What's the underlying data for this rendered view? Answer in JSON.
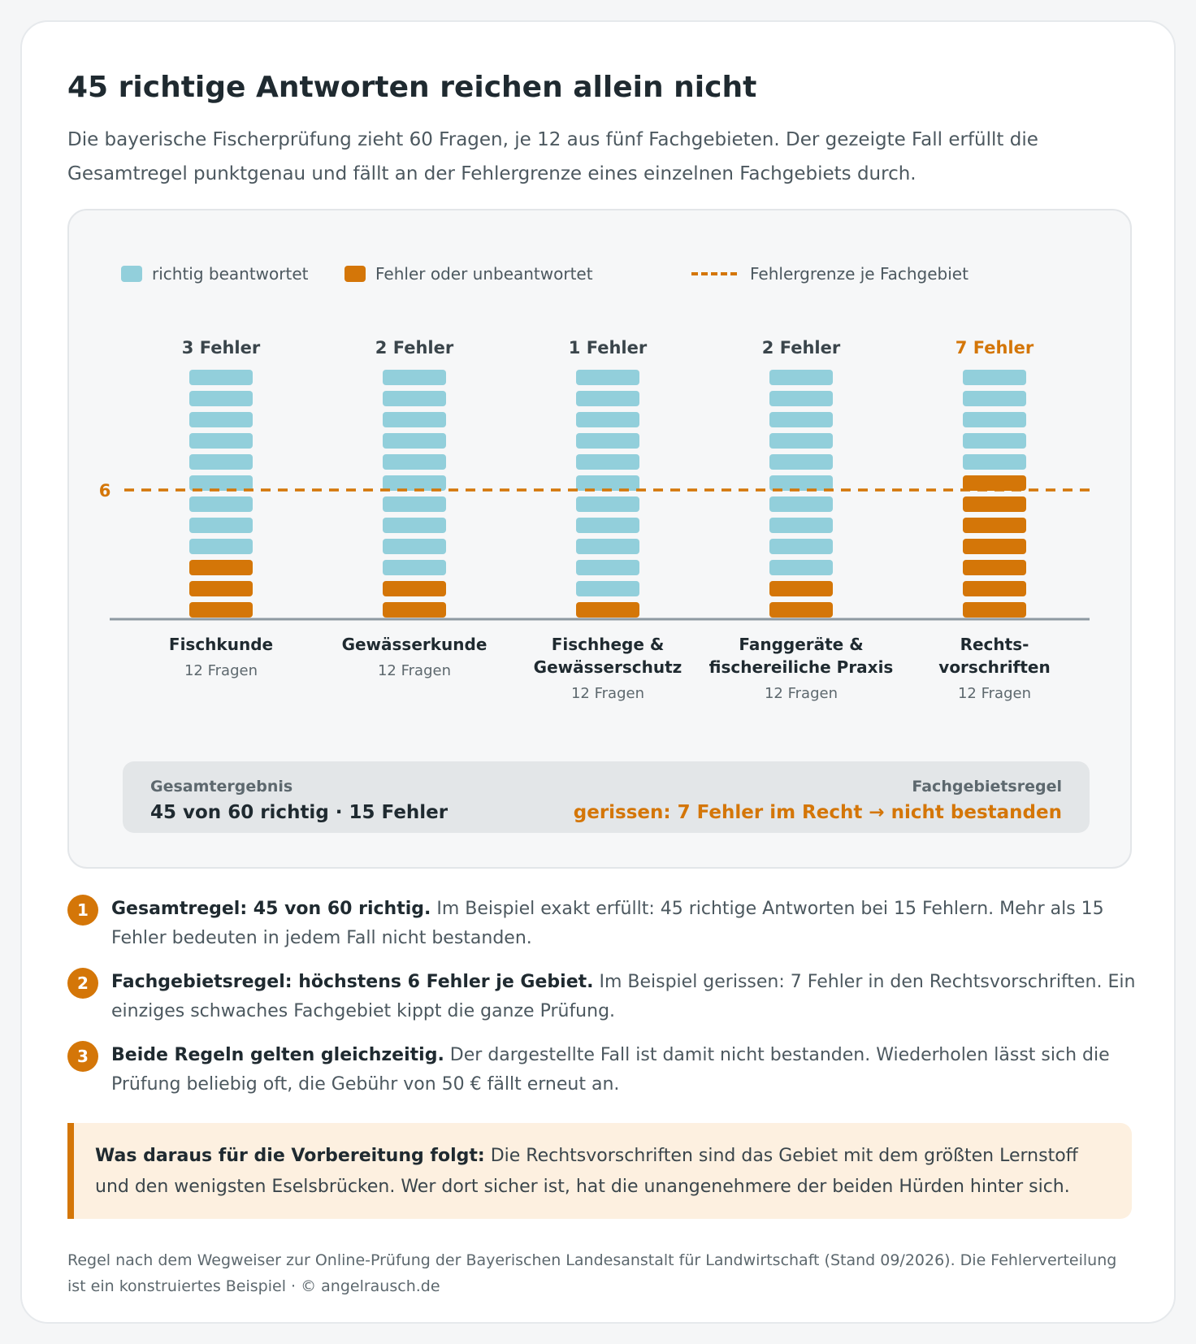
{
  "title": "45 richtige Antworten reichen allein nicht",
  "subtitle": "Die bayerische Fischerprüfung zieht 60 Fragen, je 12 aus fünf Fachgebieten. Der gezeigte Fall erfüllt die Gesamtregel punktgenau und fällt an der Fehlergrenze eines einzelnen Fachgebiets durch.",
  "legend": {
    "correct": "richtig beantwortet",
    "error": "Fehler oder unbeantwortet",
    "limit": "Fehlergrenze je Fachgebiet"
  },
  "colors": {
    "correct": "#92cfdb",
    "error": "#d47608",
    "limit": "#d47608",
    "axis": "#8e9aa2",
    "text": "#1f2a30",
    "muted": "#5d686e"
  },
  "chart_data": {
    "type": "bar",
    "stacked": true,
    "categories": [
      "Fischkunde",
      "Gewässerkunde",
      "Fischhege & Gewässerschutz",
      "Fanggeräte & fischereiliche Praxis",
      "Rechts- vorschriften"
    ],
    "category_lines": [
      [
        "Fischkunde"
      ],
      [
        "Gewässerkunde"
      ],
      [
        "Fischhege &",
        "Gewässerschutz"
      ],
      [
        "Fanggeräte &",
        "fischereiliche Praxis"
      ],
      [
        "Rechts-",
        "vorschriften"
      ]
    ],
    "category_sub": "12 Fragen",
    "questions_per_category": 12,
    "series": [
      {
        "name": "richtig beantwortet",
        "values": [
          9,
          10,
          11,
          10,
          5
        ]
      },
      {
        "name": "Fehler oder unbeantwortet",
        "values": [
          3,
          2,
          1,
          2,
          7
        ]
      }
    ],
    "error_labels": [
      "3 Fehler",
      "2 Fehler",
      "1 Fehler",
      "2 Fehler",
      "7 Fehler"
    ],
    "limit_line": {
      "value": 6,
      "label": "6"
    }
  },
  "result": {
    "left_label": "Gesamtergebnis",
    "left_value": "45 von 60 richtig · 15 Fehler",
    "right_label": "Fachgebietsregel",
    "right_value": "gerissen: 7 Fehler im Recht → nicht bestanden"
  },
  "notes": [
    {
      "num": "1",
      "bold": "Gesamtregel: 45 von 60 richtig.",
      "text": " Im Beispiel exakt erfüllt: 45 richtige Antworten bei 15 Fehlern. Mehr als 15 Fehler bedeuten in jedem Fall nicht bestanden."
    },
    {
      "num": "2",
      "bold": "Fachgebietsregel: höchstens 6 Fehler je Gebiet.",
      "text": " Im Beispiel gerissen: 7 Fehler in den Rechtsvorschriften. Ein einziges schwaches Fachgebiet kippt die ganze Prüfung."
    },
    {
      "num": "3",
      "bold": "Beide Regeln gelten gleichzeitig.",
      "text": " Der dargestellte Fall ist damit nicht bestanden. Wiederholen lässt sich die Prüfung beliebig oft, die Gebühr von 50 € fällt erneut an."
    }
  ],
  "callout": {
    "bold": "Was daraus für die Vorbereitung folgt:",
    "text": " Die Rechtsvorschriften sind das Gebiet mit dem größten Lernstoff und den wenigsten Eselsbrücken. Wer dort sicher ist, hat die unangenehmere der beiden Hürden hinter sich."
  },
  "footer": "Regel nach dem Wegweiser zur Online-Prüfung der Bayerischen Landesanstalt für Landwirtschaft (Stand 09/2026). Die Fehlerverteilung ist ein konstruiertes Beispiel · © angelrausch.de"
}
